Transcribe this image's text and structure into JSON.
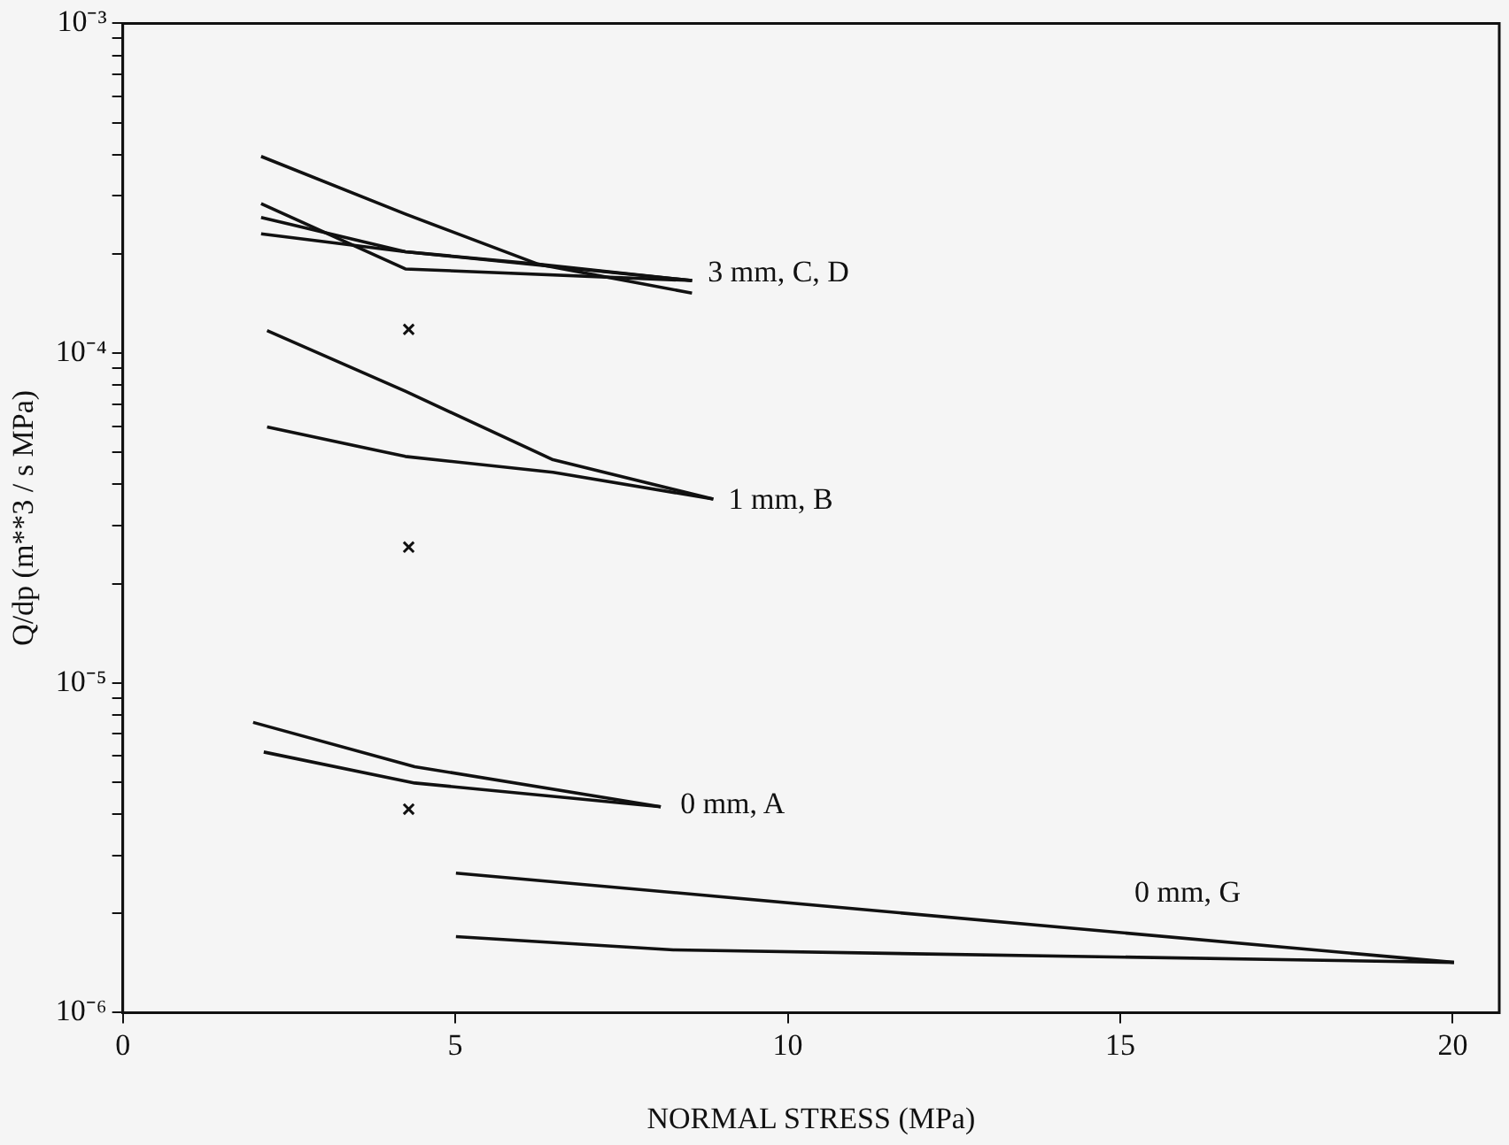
{
  "chart_data": {
    "type": "line",
    "xlabel": "NORMAL STRESS (MPa)",
    "ylabel": "Q/dp (m**3 / s MPa)",
    "log": "y",
    "grid": false,
    "legend": false,
    "marker": "none",
    "line_style": "solid",
    "xlim": [
      0,
      20.7
    ],
    "xticks": [
      0,
      5,
      10,
      15,
      20
    ],
    "ylim": [
      1e-06,
      0.001
    ],
    "yticks": [
      {
        "value": 1e-06,
        "label": "10⁻⁶"
      },
      {
        "value": 2e-06,
        "label": null
      },
      {
        "value": 3e-06,
        "label": null
      },
      {
        "value": 4e-06,
        "label": null
      },
      {
        "value": 5e-06,
        "label": null
      },
      {
        "value": 6e-06,
        "label": null
      },
      {
        "value": 7e-06,
        "label": null
      },
      {
        "value": 8e-06,
        "label": null
      },
      {
        "value": 9e-06,
        "label": null
      },
      {
        "value": 1e-05,
        "label": "10⁻⁵"
      },
      {
        "value": 2e-05,
        "label": null
      },
      {
        "value": 3e-05,
        "label": null
      },
      {
        "value": 4e-05,
        "label": null
      },
      {
        "value": 5e-05,
        "label": null
      },
      {
        "value": 6e-05,
        "label": null
      },
      {
        "value": 7e-05,
        "label": null
      },
      {
        "value": 8e-05,
        "label": null
      },
      {
        "value": 9e-05,
        "label": null
      },
      {
        "value": 0.0001,
        "label": "10⁻⁴"
      },
      {
        "value": 0.0002,
        "label": null
      },
      {
        "value": 0.0003,
        "label": null
      },
      {
        "value": 0.0004,
        "label": null
      },
      {
        "value": 0.0005,
        "label": null
      },
      {
        "value": 0.0006,
        "label": null
      },
      {
        "value": 0.0007,
        "label": null
      },
      {
        "value": 0.0008,
        "label": null
      },
      {
        "value": 0.0009,
        "label": null
      },
      {
        "value": 0.001,
        "label": "10⁻³"
      }
    ],
    "series": [
      {
        "color": "#111111",
        "x": [
          2.08,
          4.25,
          6.25,
          8.56
        ],
        "values": [
          0.000395,
          0.000264,
          0.000186,
          0.000152
        ]
      },
      {
        "color": "#111111",
        "x": [
          2.08,
          4.25,
          8.56
        ],
        "values": [
          0.000284,
          0.00018,
          0.000166
        ]
      },
      {
        "color": "#111111",
        "x": [
          2.08,
          4.25,
          6.25,
          8.56
        ],
        "values": [
          0.000258,
          0.000203,
          0.000186,
          0.000166
        ]
      },
      {
        "color": "#111111",
        "x": [
          2.08,
          4.25,
          8.56
        ],
        "values": [
          0.00023,
          0.000203,
          0.000166
        ]
      },
      {
        "color": "#111111",
        "x": [
          2.17,
          4.25,
          6.47,
          8.88
        ],
        "values": [
          0.000117,
          7.66e-05,
          4.75e-05,
          3.61e-05
        ]
      },
      {
        "color": "#111111",
        "x": [
          2.17,
          4.25,
          6.47,
          8.88
        ],
        "values": [
          5.97e-05,
          4.86e-05,
          4.35e-05,
          3.61e-05
        ]
      },
      {
        "color": "#111111",
        "x": [
          1.96,
          4.39,
          8.09
        ],
        "values": [
          7.59e-06,
          5.57e-06,
          4.21e-06
        ]
      },
      {
        "color": "#111111",
        "x": [
          2.12,
          4.39,
          8.09
        ],
        "values": [
          6.17e-06,
          4.97e-06,
          4.21e-06
        ]
      },
      {
        "color": "#111111",
        "x": [
          5.01,
          20.02
        ],
        "values": [
          2.65e-06,
          1.42e-06
        ]
      },
      {
        "color": "#111111",
        "x": [
          5.01,
          8.28,
          20.02
        ],
        "values": [
          1.7e-06,
          1.55e-06,
          1.42e-06
        ]
      },
      {
        "type": "scatter",
        "marker": "cross",
        "color": "#111111",
        "x": [
          4.3,
          4.3,
          4.3
        ],
        "values": [
          0.000118,
          2.58e-05,
          4.14e-06
        ]
      }
    ],
    "annotations": [
      "3 mm, C, D",
      "1 mm, B",
      "0 mm, A",
      "0 mm, G"
    ]
  }
}
